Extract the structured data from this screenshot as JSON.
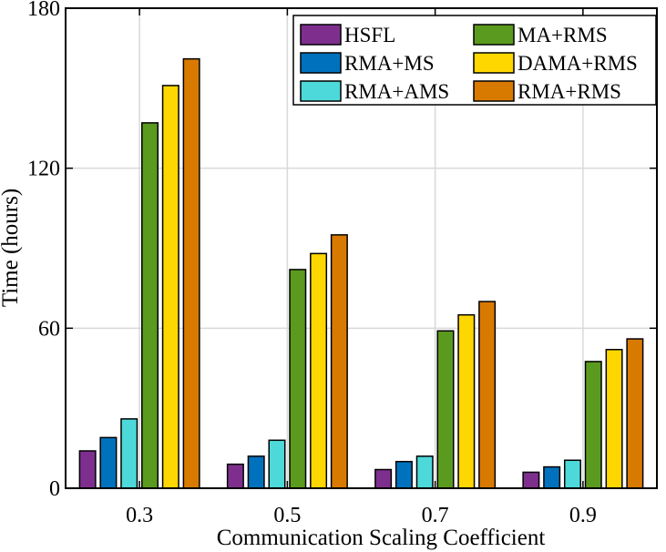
{
  "chart_data": {
    "type": "bar",
    "title": "",
    "xlabel": "Communication Scaling Coefficient",
    "ylabel": "Time (hours)",
    "ylim": [
      0,
      180
    ],
    "yticks": [
      0,
      60,
      120,
      180
    ],
    "grid": true,
    "legend_position": "top-right",
    "categories": [
      "0.3",
      "0.5",
      "0.7",
      "0.9"
    ],
    "series": [
      {
        "name": "HSFL",
        "color": "#7E2F8E",
        "values": [
          14,
          9,
          7,
          6
        ]
      },
      {
        "name": "RMA+MS",
        "color": "#0072BD",
        "values": [
          19,
          12,
          10,
          8
        ]
      },
      {
        "name": "RMA+AMS",
        "color": "#4DD9D9",
        "values": [
          26,
          18,
          12,
          10.5
        ]
      },
      {
        "name": "MA+RMS",
        "color": "#5A9A1E",
        "values": [
          137,
          82,
          59,
          47.5
        ]
      },
      {
        "name": "DAMA+RMS",
        "color": "#FFD700",
        "values": [
          151,
          88,
          65,
          52
        ]
      },
      {
        "name": "RMA+RMS",
        "color": "#D97A00",
        "values": [
          161,
          95,
          70,
          56
        ]
      }
    ]
  }
}
